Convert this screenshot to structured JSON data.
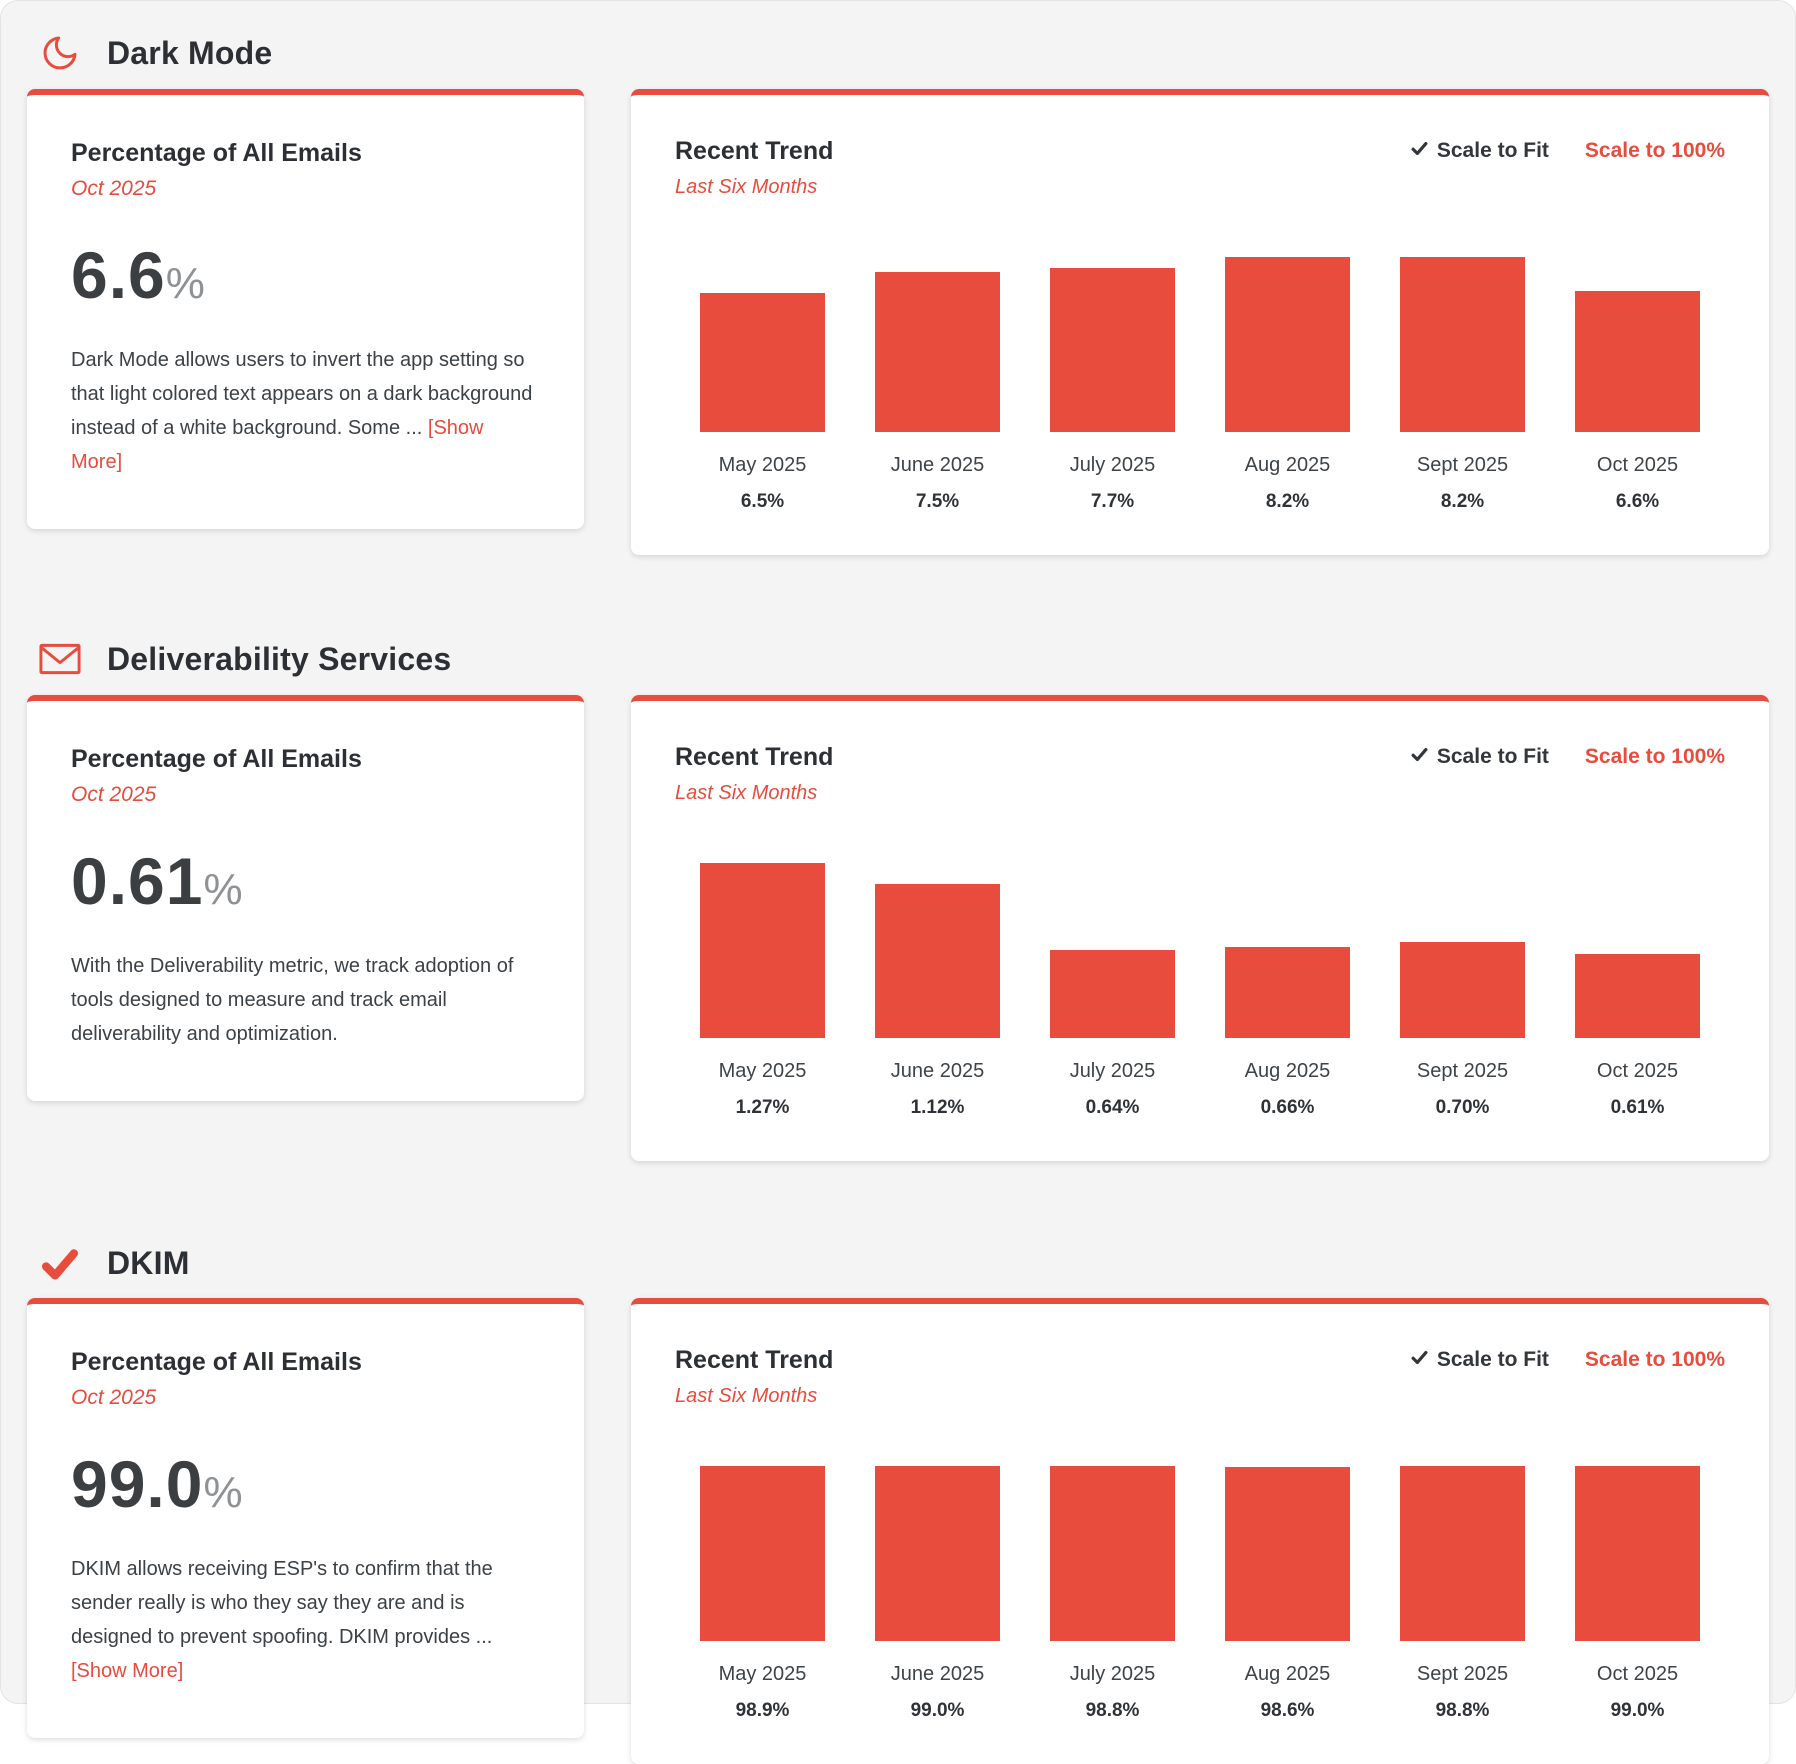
{
  "colors": {
    "accent": "#e74c3c",
    "bar": "#e74c3c",
    "heading_text": "#2c2f33",
    "body_text": "#3c4146"
  },
  "sections": [
    {
      "id": "dark-mode",
      "icon": "moon-icon",
      "title": "Dark Mode",
      "stat": {
        "heading": "Percentage of All Emails",
        "period": "Oct 2025",
        "value": "6.6",
        "unit": "%",
        "description": "Dark Mode allows users to invert the app setting so that light colored text appears on a dark background instead of a white background. Some ...",
        "show_more_label": "[Show More]"
      },
      "trend": {
        "heading": "Recent Trend",
        "subheading": "Last Six Months",
        "scale_to_fit_label": "Scale to Fit",
        "scale_to_100_label": "Scale to 100%",
        "chart_data": {
          "type": "bar",
          "categories": [
            "May 2025",
            "June 2025",
            "July 2025",
            "Aug 2025",
            "Sept 2025",
            "Oct 2025"
          ],
          "values": [
            6.5,
            7.5,
            7.7,
            8.2,
            8.2,
            6.6
          ],
          "value_labels": [
            "6.5%",
            "7.5%",
            "7.7%",
            "8.2%",
            "8.2%",
            "6.6%"
          ],
          "scale_mode": "fit"
        }
      }
    },
    {
      "id": "deliverability-services",
      "icon": "envelope-icon",
      "title": "Deliverability Services",
      "stat": {
        "heading": "Percentage of All Emails",
        "period": "Oct 2025",
        "value": "0.61",
        "unit": "%",
        "description": "With the Deliverability metric, we track adoption of tools designed to measure and track email deliverability and optimization.",
        "show_more_label": ""
      },
      "trend": {
        "heading": "Recent Trend",
        "subheading": "Last Six Months",
        "scale_to_fit_label": "Scale to Fit",
        "scale_to_100_label": "Scale to 100%",
        "chart_data": {
          "type": "bar",
          "categories": [
            "May 2025",
            "June 2025",
            "July 2025",
            "Aug 2025",
            "Sept 2025",
            "Oct 2025"
          ],
          "values": [
            1.27,
            1.12,
            0.64,
            0.66,
            0.7,
            0.61
          ],
          "value_labels": [
            "1.27%",
            "1.12%",
            "0.64%",
            "0.66%",
            "0.70%",
            "0.61%"
          ],
          "scale_mode": "fit"
        }
      }
    },
    {
      "id": "dkim",
      "icon": "checkmark-icon",
      "title": "DKIM",
      "stat": {
        "heading": "Percentage of All Emails",
        "period": "Oct 2025",
        "value": "99.0",
        "unit": "%",
        "description": "DKIM allows receiving ESP's to confirm that the sender really is who they say they are and is designed to prevent spoofing. DKIM provides ...",
        "show_more_label": "[Show More]"
      },
      "trend": {
        "heading": "Recent Trend",
        "subheading": "Last Six Months",
        "scale_to_fit_label": "Scale to Fit",
        "scale_to_100_label": "Scale to 100%",
        "chart_data": {
          "type": "bar",
          "categories": [
            "May 2025",
            "June 2025",
            "July 2025",
            "Aug 2025",
            "Sept 2025",
            "Oct 2025"
          ],
          "values": [
            98.9,
            99.0,
            98.8,
            98.6,
            98.8,
            99.0
          ],
          "value_labels": [
            "98.9%",
            "99.0%",
            "98.8%",
            "98.6%",
            "98.8%",
            "99.0%"
          ],
          "scale_mode": "fit"
        }
      }
    }
  ]
}
